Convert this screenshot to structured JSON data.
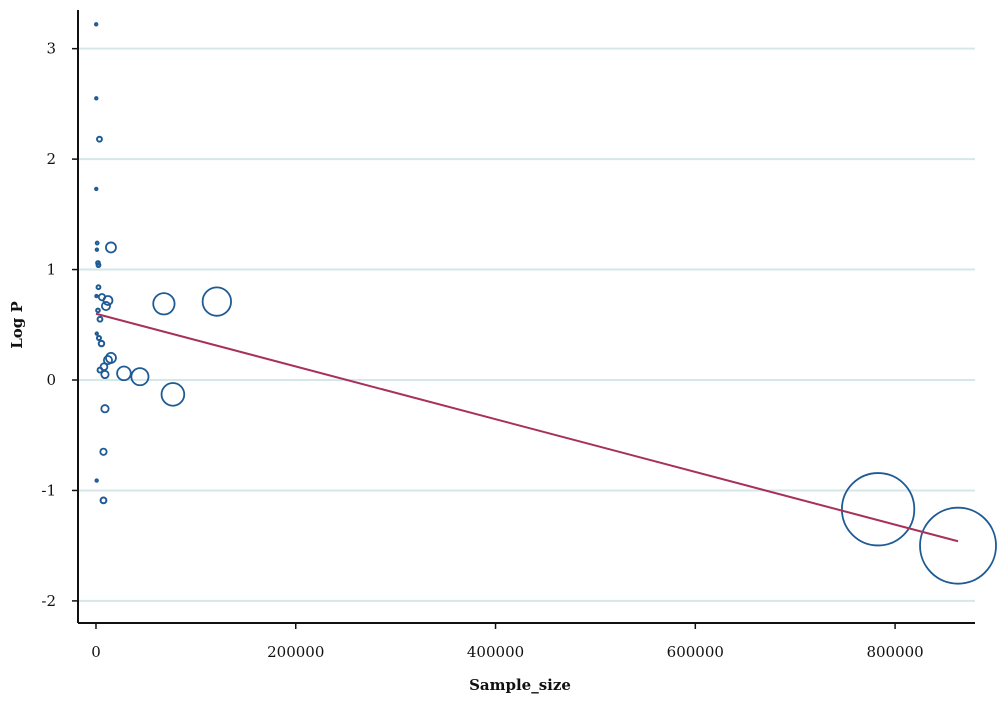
{
  "chart_data": {
    "type": "scatter",
    "title": "",
    "xlabel": "Sample_size",
    "ylabel": "Log P",
    "xlim": [
      -18000,
      880000
    ],
    "ylim": [
      -2.2,
      3.35
    ],
    "xticks": [
      0,
      200000,
      400000,
      600000,
      800000
    ],
    "xtick_labels": [
      "0",
      "200000",
      "400000",
      "600000",
      "800000"
    ],
    "yticks": [
      -2,
      -1,
      0,
      1,
      2,
      3
    ],
    "ytick_labels": [
      "-2",
      "-1",
      "0",
      "1",
      "2",
      "3"
    ],
    "grid": "horizontal",
    "legend": "none",
    "colors": {
      "marker": "#1f5a94",
      "fit_line": "#a8305c",
      "grid": "#d5e7e7",
      "axis": "#111111"
    },
    "points": [
      {
        "x": 200,
        "y": 3.22,
        "weight": 200
      },
      {
        "x": 300,
        "y": 2.55,
        "weight": 350
      },
      {
        "x": 3500,
        "y": 2.18,
        "weight": 3500
      },
      {
        "x": 300,
        "y": 1.73,
        "weight": 320
      },
      {
        "x": 15000,
        "y": 1.2,
        "weight": 15000
      },
      {
        "x": 1200,
        "y": 1.24,
        "weight": 1200
      },
      {
        "x": 900,
        "y": 1.18,
        "weight": 900
      },
      {
        "x": 2000,
        "y": 1.06,
        "weight": 2000
      },
      {
        "x": 2500,
        "y": 1.04,
        "weight": 2200
      },
      {
        "x": 2500,
        "y": 0.84,
        "weight": 2200
      },
      {
        "x": 500,
        "y": 0.76,
        "weight": 500
      },
      {
        "x": 6000,
        "y": 0.75,
        "weight": 6000
      },
      {
        "x": 12000,
        "y": 0.72,
        "weight": 12000
      },
      {
        "x": 10000,
        "y": 0.67,
        "weight": 10000
      },
      {
        "x": 2000,
        "y": 0.63,
        "weight": 2000
      },
      {
        "x": 4000,
        "y": 0.55,
        "weight": 3500
      },
      {
        "x": 800,
        "y": 0.42,
        "weight": 800
      },
      {
        "x": 3000,
        "y": 0.38,
        "weight": 2500
      },
      {
        "x": 5500,
        "y": 0.33,
        "weight": 4500
      },
      {
        "x": 15000,
        "y": 0.2,
        "weight": 15000
      },
      {
        "x": 12000,
        "y": 0.18,
        "weight": 10000
      },
      {
        "x": 8000,
        "y": 0.12,
        "weight": 7000
      },
      {
        "x": 4000,
        "y": 0.09,
        "weight": 3500
      },
      {
        "x": 9000,
        "y": 0.05,
        "weight": 8000
      },
      {
        "x": 28000,
        "y": 0.06,
        "weight": 28000
      },
      {
        "x": 44000,
        "y": 0.03,
        "weight": 44000
      },
      {
        "x": 68000,
        "y": 0.69,
        "weight": 68000
      },
      {
        "x": 121000,
        "y": 0.71,
        "weight": 121000
      },
      {
        "x": 77000,
        "y": -0.13,
        "weight": 77000
      },
      {
        "x": 9000,
        "y": -0.26,
        "weight": 8000
      },
      {
        "x": 7500,
        "y": -0.65,
        "weight": 6000
      },
      {
        "x": 700,
        "y": -0.91,
        "weight": 250
      },
      {
        "x": 7500,
        "y": -1.09,
        "weight": 5000
      },
      {
        "x": 783000,
        "y": -1.17,
        "weight": 783000
      },
      {
        "x": 863000,
        "y": -1.5,
        "weight": 863000
      }
    ],
    "fit_line": {
      "x": [
        0,
        863000
      ],
      "y": [
        0.6,
        -1.46
      ]
    }
  }
}
